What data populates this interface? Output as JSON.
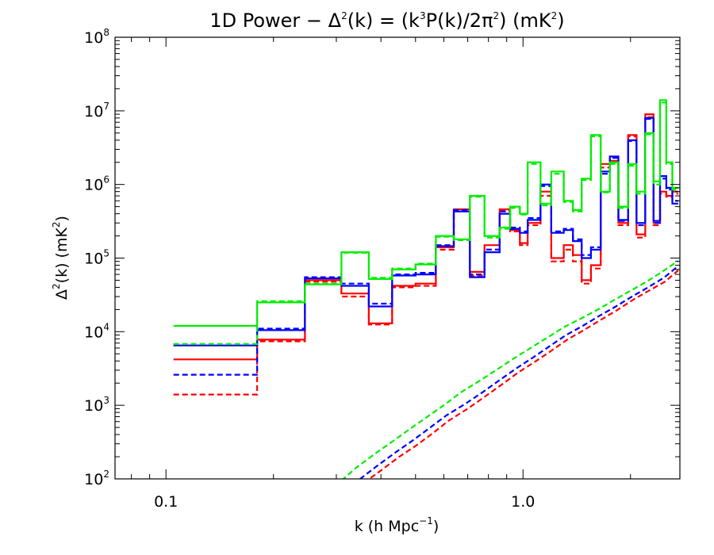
{
  "chart_data": {
    "type": "line",
    "title": "1D Power − Δ²(k) = (k³P(k)/2π²) (mK²)",
    "title_parts": {
      "a": "1D Power − Δ",
      "a_sup": "2",
      "b": "(k) = (k",
      "b_sup": "3",
      "c": "P(k)/2π",
      "c_sup": "2",
      "d": ") (mK",
      "d_sup": "2",
      "e": ")"
    },
    "xlabel": "k (h Mpc⁻¹)",
    "xlabel_parts": {
      "a": "k (h Mpc",
      "a_sup": "−1",
      "b": ")"
    },
    "ylabel": "Δ²(k) (mK²)",
    "ylabel_parts": {
      "a": "Δ",
      "a_sup": "2",
      "b": "(k) (mK",
      "b_sup": "2",
      "c": ")"
    },
    "xscale": "log",
    "yscale": "log",
    "xlim": [
      0.072,
      2.75
    ],
    "ylim": [
      100,
      100000000
    ],
    "x_ticks": [
      {
        "value": 0.1,
        "label": "0.1"
      },
      {
        "value": 1.0,
        "label": "1.0"
      }
    ],
    "y_ticks": [
      {
        "value": 100,
        "base": "10",
        "exp": "2"
      },
      {
        "value": 1000,
        "base": "10",
        "exp": "3"
      },
      {
        "value": 10000,
        "base": "10",
        "exp": "4"
      },
      {
        "value": 100000,
        "base": "10",
        "exp": "5"
      },
      {
        "value": 1000000,
        "base": "10",
        "exp": "6"
      },
      {
        "value": 10000000,
        "base": "10",
        "exp": "7"
      },
      {
        "value": 100000000,
        "base": "10",
        "exp": "8"
      }
    ],
    "grid": false,
    "legend": "none",
    "bin_edges": [
      0.105,
      0.18,
      0.245,
      0.31,
      0.37,
      0.43,
      0.5,
      0.57,
      0.64,
      0.71,
      0.78,
      0.86,
      0.92,
      0.98,
      1.03,
      1.12,
      1.2,
      1.3,
      1.38,
      1.46,
      1.55,
      1.65,
      1.75,
      1.85,
      1.97,
      2.08,
      2.2,
      2.32,
      2.42,
      2.52,
      2.62,
      2.72
    ],
    "series": [
      {
        "color": "#ff0000",
        "style": "solid",
        "kind": "step",
        "values": [
          4200,
          7800,
          50000,
          33000,
          13000,
          42000,
          45000,
          140000,
          460000,
          65000,
          150000,
          460000,
          240000,
          160000,
          300000,
          800000,
          100000,
          150000,
          110000,
          50000,
          80000,
          1900000,
          2100000,
          300000,
          4700000,
          210000,
          9000000,
          300000,
          800000,
          700000,
          800000
        ]
      },
      {
        "color": "#ff0000",
        "style": "dashed",
        "kind": "step",
        "values": [
          1400,
          7400,
          48000,
          30000,
          12500,
          40000,
          42000,
          130000,
          430000,
          58000,
          130000,
          440000,
          230000,
          150000,
          280000,
          700000,
          90000,
          130000,
          90000,
          45000,
          72000,
          1700000,
          2000000,
          280000,
          4500000,
          190000,
          8200000,
          280000,
          750000,
          680000,
          750000
        ]
      },
      {
        "color": "#0000ff",
        "style": "solid",
        "kind": "step",
        "values": [
          6500,
          10500,
          53000,
          42000,
          22000,
          58000,
          60000,
          145000,
          430000,
          55000,
          120000,
          400000,
          250000,
          220000,
          330000,
          1000000,
          220000,
          240000,
          170000,
          100000,
          130000,
          1500000,
          2400000,
          330000,
          4000000,
          300000,
          8000000,
          320000,
          1300000,
          900000,
          550000
        ]
      },
      {
        "color": "#0000ff",
        "style": "dashed",
        "kind": "step",
        "values": [
          2600,
          11000,
          55000,
          45000,
          24000,
          60000,
          63000,
          150000,
          450000,
          60000,
          130000,
          430000,
          260000,
          230000,
          350000,
          950000,
          230000,
          250000,
          180000,
          110000,
          140000,
          1400000,
          2300000,
          320000,
          3900000,
          280000,
          7800000,
          300000,
          1200000,
          850000,
          600000
        ]
      },
      {
        "color": "#00ee00",
        "style": "solid",
        "kind": "step",
        "values": [
          12000,
          25000,
          44000,
          120000,
          52000,
          70000,
          82000,
          200000,
          180000,
          700000,
          200000,
          260000,
          500000,
          400000,
          2000000,
          550000,
          1500000,
          600000,
          450000,
          1200000,
          4700000,
          800000,
          2000000,
          500000,
          1900000,
          800000,
          5000000,
          1100000,
          14000000,
          2000000,
          900000
        ]
      },
      {
        "color": "#00ee00",
        "style": "dashed",
        "kind": "step",
        "values": [
          6800,
          26000,
          45000,
          118000,
          54000,
          72000,
          84000,
          195000,
          175000,
          680000,
          190000,
          250000,
          480000,
          390000,
          1900000,
          520000,
          1400000,
          580000,
          430000,
          1150000,
          4500000,
          780000,
          1900000,
          480000,
          1800000,
          750000,
          4800000,
          1000000,
          13000000,
          1900000,
          850000
        ]
      },
      {
        "color": "#ff0000",
        "style": "dashed",
        "kind": "line",
        "x": [
          0.33,
          0.36,
          0.4,
          0.45,
          0.5,
          0.56,
          0.62,
          0.7,
          0.78,
          0.87,
          0.97,
          1.08,
          1.2,
          1.33,
          1.48,
          1.65,
          1.83,
          2.03,
          2.25,
          2.5,
          2.72
        ],
        "y": [
          60,
          90,
          130,
          200,
          280,
          420,
          620,
          900,
          1300,
          1900,
          2800,
          3900,
          5500,
          7800,
          10500,
          14500,
          19500,
          27000,
          36000,
          48000,
          68000
        ]
      },
      {
        "color": "#0000ff",
        "style": "dashed",
        "kind": "line",
        "x": [
          0.32,
          0.35,
          0.39,
          0.44,
          0.49,
          0.55,
          0.61,
          0.69,
          0.77,
          0.86,
          0.96,
          1.07,
          1.19,
          1.32,
          1.47,
          1.64,
          1.82,
          2.02,
          2.24,
          2.48,
          2.72
        ],
        "y": [
          70,
          100,
          150,
          230,
          330,
          500,
          730,
          1050,
          1500,
          2200,
          3200,
          4500,
          6400,
          9000,
          12000,
          16500,
          22000,
          30000,
          40000,
          54000,
          78000
        ]
      },
      {
        "color": "#00ee00",
        "style": "dashed",
        "kind": "line",
        "x": [
          0.31,
          0.34,
          0.38,
          0.43,
          0.48,
          0.54,
          0.6,
          0.67,
          0.75,
          0.84,
          0.94,
          1.05,
          1.17,
          1.3,
          1.45,
          1.62,
          1.8,
          2.0,
          2.22,
          2.45,
          2.72
        ],
        "y": [
          95,
          140,
          210,
          320,
          470,
          700,
          1000,
          1500,
          2100,
          3000,
          4300,
          6000,
          8300,
          11500,
          15000,
          20000,
          27000,
          36000,
          48000,
          65000,
          92000
        ]
      }
    ]
  }
}
